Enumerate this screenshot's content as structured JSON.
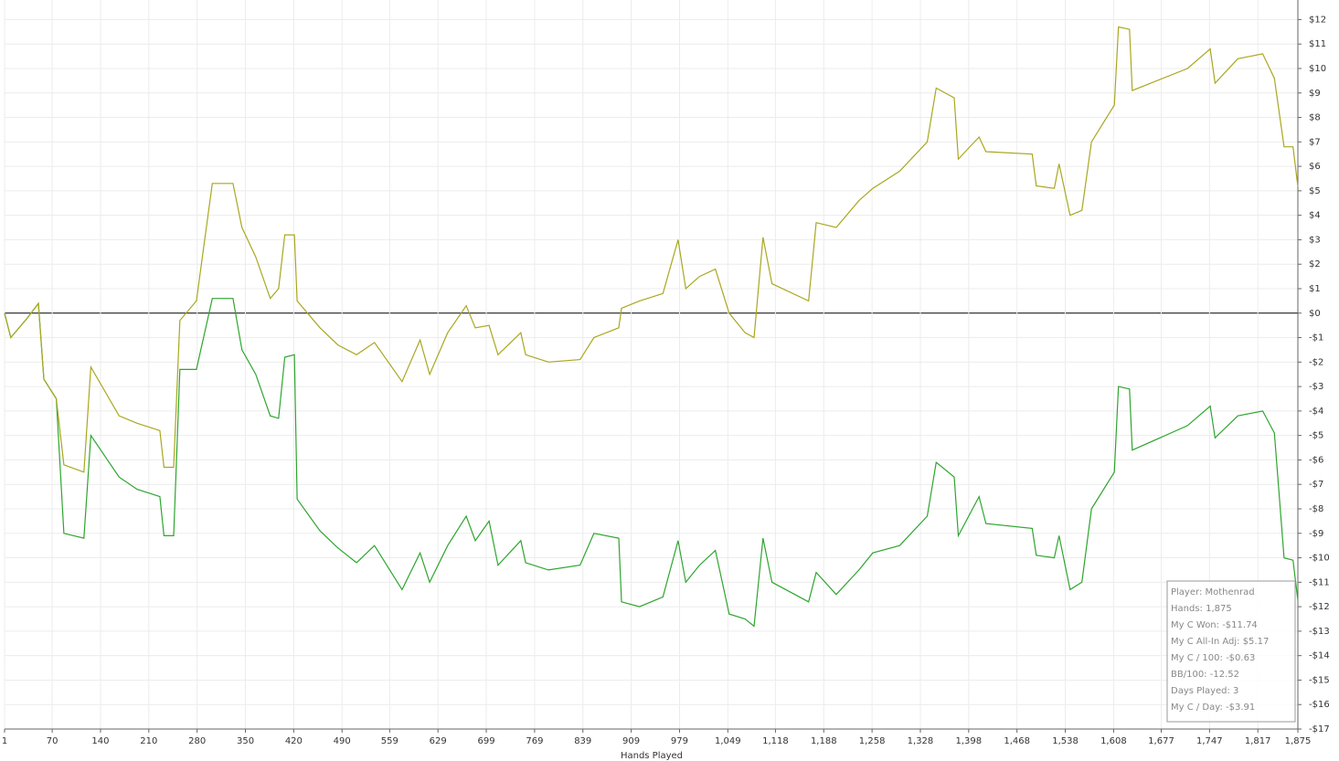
{
  "chart_data": {
    "type": "line",
    "x_label": "Hands Played",
    "xlim": [
      1,
      1875
    ],
    "ylim": [
      -17,
      12.8
    ],
    "x": [
      1,
      10,
      34,
      50,
      58,
      76,
      87,
      116,
      126,
      167,
      193,
      226,
      232,
      246,
      255,
      279,
      302,
      332,
      345,
      365,
      386,
      398,
      407,
      421,
      425,
      458,
      484,
      511,
      537,
      577,
      603,
      617,
      643,
      670,
      683,
      703,
      716,
      749,
      756,
      789,
      835,
      855,
      891,
      895,
      921,
      955,
      977,
      988,
      1008,
      1031,
      1051,
      1074,
      1087,
      1100,
      1113,
      1166,
      1177,
      1206,
      1239,
      1259,
      1298,
      1338,
      1351,
      1377,
      1383,
      1413,
      1423,
      1490,
      1496,
      1522,
      1529,
      1545,
      1562,
      1576,
      1609,
      1615,
      1631,
      1635,
      1715,
      1748,
      1755,
      1788,
      1824,
      1841,
      1855,
      1868,
      1875
    ],
    "series": [
      {
        "name": "My C Won",
        "color": "#2ea52e",
        "values": [
          0,
          -1.0,
          -0.2,
          0.4,
          -2.7,
          -3.5,
          -9,
          -9.2,
          -5,
          -6.7,
          -7.2,
          -7.5,
          -9.1,
          -9.1,
          -2.3,
          -2.3,
          0.6,
          0.6,
          -1.5,
          -2.5,
          -4.2,
          -4.3,
          -1.8,
          -1.7,
          -7.6,
          -8.9,
          -9.6,
          -10.2,
          -9.5,
          -11.3,
          -9.8,
          -11,
          -9.5,
          -8.3,
          -9.3,
          -8.5,
          -10.3,
          -9.3,
          -10.2,
          -10.5,
          -10.3,
          -9,
          -9.2,
          -11.8,
          -12,
          -11.6,
          -9.3,
          -11,
          -10.3,
          -9.7,
          -12.3,
          -12.5,
          -12.8,
          -9.2,
          -11,
          -11.8,
          -10.6,
          -11.5,
          -10.5,
          -9.8,
          -9.5,
          -8.3,
          -6.1,
          -6.7,
          -9.1,
          -7.5,
          -8.6,
          -8.8,
          -9.9,
          -10,
          -9.1,
          -11.3,
          -11,
          -8,
          -6.5,
          -3,
          -3.1,
          -5.6,
          -4.6,
          -3.8,
          -5.1,
          -4.2,
          -4,
          -4.9,
          -10,
          -10.1,
          -11.74
        ]
      },
      {
        "name": "My C All-In Adj",
        "color": "#a9a71f",
        "values": [
          0,
          -1.0,
          -0.2,
          0.4,
          -2.7,
          -3.5,
          -6.2,
          -6.5,
          -2.2,
          -4.2,
          -4.5,
          -4.8,
          -6.3,
          -6.3,
          -0.3,
          0.5,
          5.3,
          5.3,
          3.5,
          2.3,
          0.6,
          1,
          3.2,
          3.2,
          0.5,
          -0.6,
          -1.3,
          -1.7,
          -1.2,
          -2.8,
          -1.1,
          -2.5,
          -0.8,
          0.3,
          -0.6,
          -0.5,
          -1.7,
          -0.8,
          -1.7,
          -2,
          -1.9,
          -1,
          -0.6,
          0.2,
          0.5,
          0.8,
          3,
          1,
          1.5,
          1.8,
          0,
          -0.8,
          -1,
          3.1,
          1.2,
          0.5,
          3.7,
          3.5,
          4.6,
          5.1,
          5.8,
          7,
          9.2,
          8.8,
          6.3,
          7.2,
          6.6,
          6.5,
          5.2,
          5.1,
          6.1,
          4,
          4.2,
          7,
          8.5,
          11.7,
          11.6,
          9.1,
          10,
          10.8,
          9.4,
          10.4,
          10.6,
          9.6,
          6.8,
          6.8,
          5.17
        ]
      }
    ],
    "xticks": [
      1,
      70,
      140,
      210,
      280,
      350,
      420,
      490,
      559,
      629,
      699,
      769,
      839,
      909,
      979,
      {
        "value": 1049,
        "label": "1,049"
      },
      {
        "value": 1118,
        "label": "1,118"
      },
      {
        "value": 1188,
        "label": "1,188"
      },
      {
        "value": 1258,
        "label": "1,258"
      },
      {
        "value": 1328,
        "label": "1,328"
      },
      {
        "value": 1398,
        "label": "1,398"
      },
      {
        "value": 1468,
        "label": "1,468"
      },
      {
        "value": 1538,
        "label": "1,538"
      },
      {
        "value": 1608,
        "label": "1,608"
      },
      {
        "value": 1677,
        "label": "1,677"
      },
      {
        "value": 1747,
        "label": "1,747"
      },
      {
        "value": 1817,
        "label": "1,817"
      },
      {
        "value": 1875,
        "label": "1,875"
      }
    ],
    "yticks": [
      {
        "value": 12,
        "label": "$12"
      },
      {
        "value": 11,
        "label": "$11"
      },
      {
        "value": 10,
        "label": "$10"
      },
      {
        "value": 9,
        "label": "$9"
      },
      {
        "value": 8,
        "label": "$8"
      },
      {
        "value": 7,
        "label": "$7"
      },
      {
        "value": 6,
        "label": "$6"
      },
      {
        "value": 5,
        "label": "$5"
      },
      {
        "value": 4,
        "label": "$4"
      },
      {
        "value": 3,
        "label": "$3"
      },
      {
        "value": 2,
        "label": "$2"
      },
      {
        "value": 1,
        "label": "$1"
      },
      {
        "value": 0,
        "label": "$0"
      },
      {
        "value": -1,
        "label": "-$1"
      },
      {
        "value": -2,
        "label": "-$2"
      },
      {
        "value": -3,
        "label": "-$3"
      },
      {
        "value": -4,
        "label": "-$4"
      },
      {
        "value": -5,
        "label": "-$5"
      },
      {
        "value": -6,
        "label": "-$6"
      },
      {
        "value": -7,
        "label": "-$7"
      },
      {
        "value": -8,
        "label": "-$8"
      },
      {
        "value": -9,
        "label": "-$9"
      },
      {
        "value": -10,
        "label": "-$10"
      },
      {
        "value": -11,
        "label": "-$11"
      },
      {
        "value": -12,
        "label": "-$12"
      },
      {
        "value": -13,
        "label": "-$13"
      },
      {
        "value": -14,
        "label": "-$14"
      },
      {
        "value": -15,
        "label": "-$15"
      },
      {
        "value": -16,
        "label": "-$16"
      },
      {
        "value": -17,
        "label": "-$17"
      }
    ],
    "grid": true,
    "info_box": [
      "Player: Mothenrad",
      "Hands: 1,875",
      "My C Won: -$11.74",
      "My C All-In Adj: $5.17",
      "My C / 100: -$0.63",
      "BB/100: -12.52",
      "Days Played: 3",
      "My C / Day: -$3.91"
    ]
  }
}
